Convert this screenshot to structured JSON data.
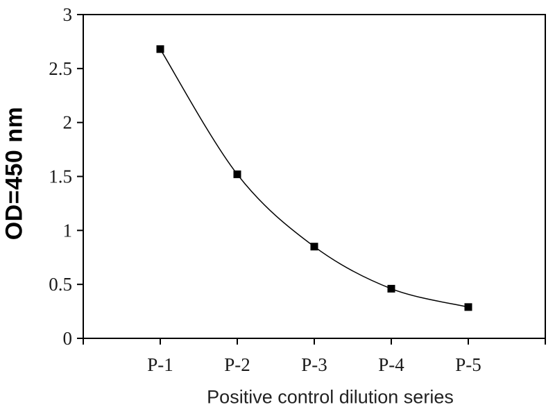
{
  "chart_data": {
    "type": "line",
    "title": "",
    "xlabel": "Positive control dilution series",
    "ylabel": "OD=450 nm",
    "categories": [
      "P-1",
      "P-2",
      "P-3",
      "P-4",
      "P-5"
    ],
    "values": [
      2.68,
      1.52,
      0.85,
      0.46,
      0.29
    ],
    "series": [
      {
        "name": "Positive control",
        "values": [
          2.68,
          1.52,
          0.85,
          0.46,
          0.29
        ]
      }
    ],
    "ylim": [
      0,
      3
    ],
    "yticks": [
      0,
      0.5,
      1,
      1.5,
      2,
      2.5,
      3
    ],
    "ytick_labels": [
      "0",
      "0.5",
      "1",
      "1.5",
      "2",
      "2.5",
      "3"
    ],
    "grid": false,
    "legend": "none",
    "smooth": true,
    "marker": "square",
    "marker_size": 11,
    "line_color": "#000000",
    "marker_color": "#000000",
    "axis_color": "#000000",
    "tick_label_color": "#1a1a1a",
    "plot_background": "#ffffff",
    "background": "#ffffff"
  }
}
